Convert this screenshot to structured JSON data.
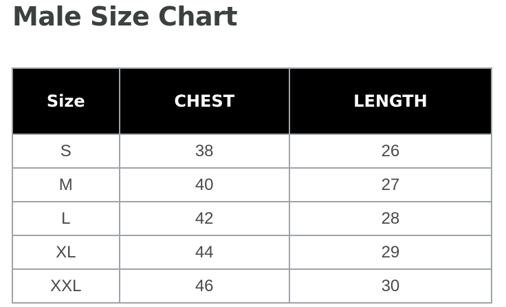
{
  "title": "Male Size Chart",
  "table": {
    "headers": [
      "Size",
      "CHEST",
      "LENGTH"
    ],
    "rows": [
      [
        "S",
        "38",
        "26"
      ],
      [
        "M",
        "40",
        "27"
      ],
      [
        "L",
        "42",
        "28"
      ],
      [
        "XL",
        "44",
        "29"
      ],
      [
        "XXL",
        "46",
        "30"
      ]
    ]
  }
}
